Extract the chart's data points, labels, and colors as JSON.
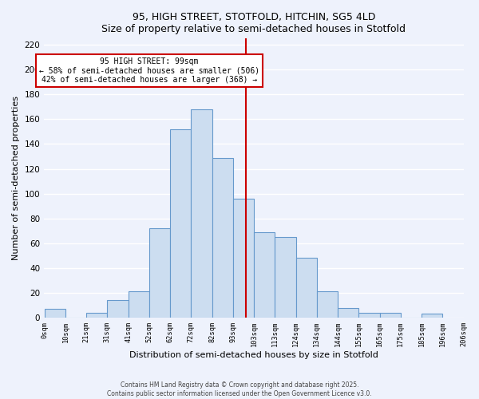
{
  "title": "95, HIGH STREET, STOTFOLD, HITCHIN, SG5 4LD",
  "subtitle": "Size of property relative to semi-detached houses in Stotfold",
  "xlabel": "Distribution of semi-detached houses by size in Stotfold",
  "ylabel": "Number of semi-detached properties",
  "tick_labels": [
    "0sqm",
    "10sqm",
    "21sqm",
    "31sqm",
    "41sqm",
    "52sqm",
    "62sqm",
    "72sqm",
    "82sqm",
    "93sqm",
    "103sqm",
    "113sqm",
    "124sqm",
    "134sqm",
    "144sqm",
    "155sqm",
    "165sqm",
    "175sqm",
    "185sqm",
    "196sqm",
    "206sqm"
  ],
  "bar_values": [
    7,
    0,
    4,
    14,
    21,
    72,
    152,
    168,
    129,
    96,
    69,
    65,
    48,
    21,
    8,
    4,
    4,
    0,
    3
  ],
  "bar_color": "#ccddf0",
  "bar_edge_color": "#6699cc",
  "vline_color": "#cc0000",
  "annotation_title": "95 HIGH STREET: 99sqm",
  "annotation_line1": "← 58% of semi-detached houses are smaller (506)",
  "annotation_line2": "42% of semi-detached houses are larger (368) →",
  "annotation_box_facecolor": "#ffffff",
  "annotation_box_edgecolor": "#cc0000",
  "ylim": [
    0,
    225
  ],
  "yticks": [
    0,
    20,
    40,
    60,
    80,
    100,
    120,
    140,
    160,
    180,
    200,
    220
  ],
  "footer1": "Contains HM Land Registry data © Crown copyright and database right 2025.",
  "footer2": "Contains public sector information licensed under the Open Government Licence v3.0.",
  "bg_color": "#eef2fc",
  "grid_color": "#ffffff"
}
